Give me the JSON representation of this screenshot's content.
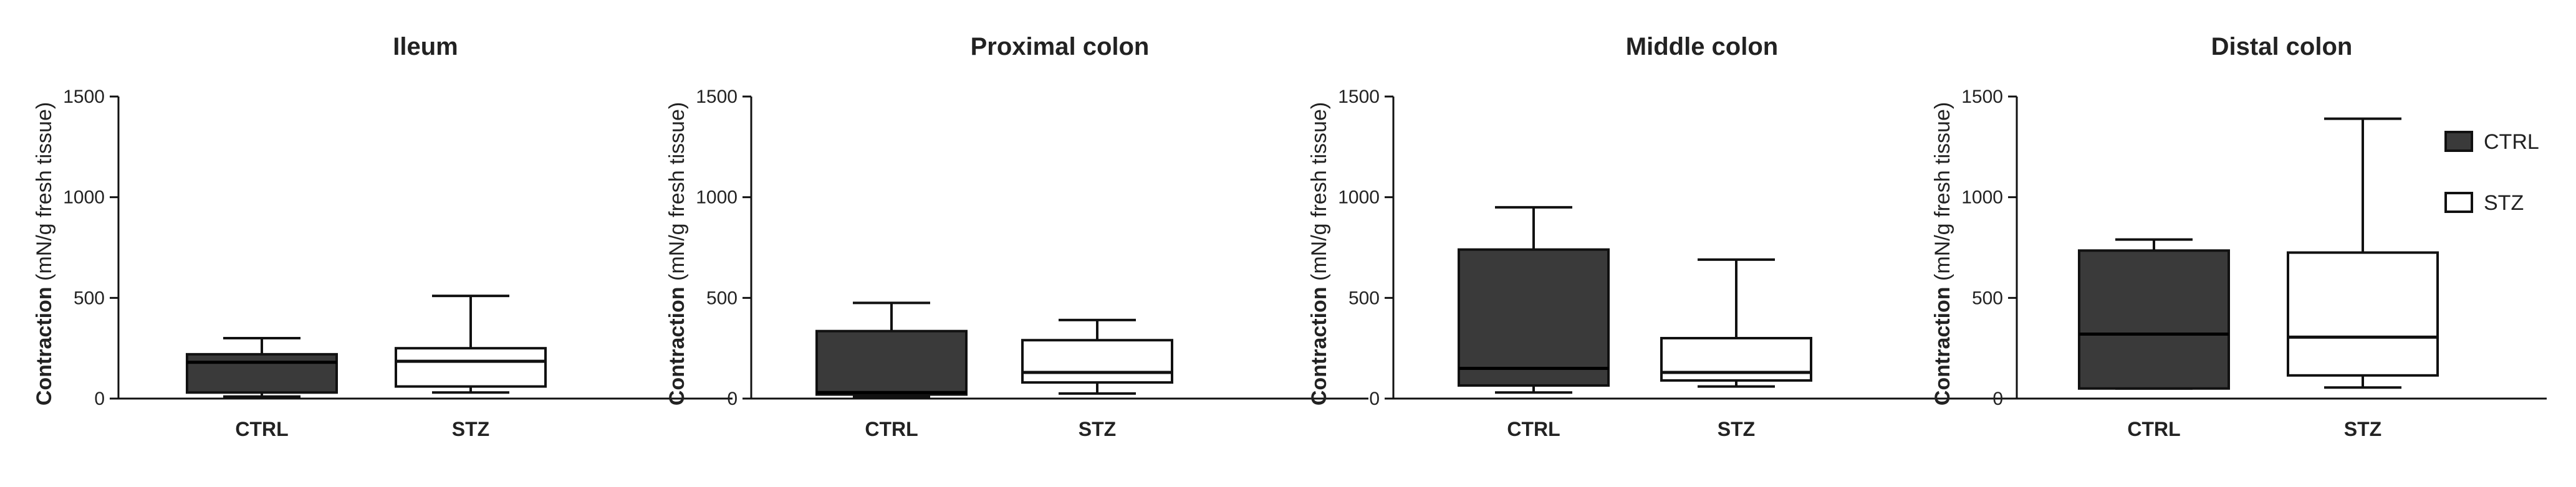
{
  "colors": {
    "ctrl_fill": "#3a3a3a",
    "stz_fill": "#ffffff",
    "stroke": "#111111"
  },
  "legend": {
    "placement": "top-right",
    "items": [
      {
        "label": "CTRL",
        "swatch": "ctrl_fill"
      },
      {
        "label": "STZ",
        "swatch": "stz_fill"
      }
    ]
  },
  "chart_data": [
    {
      "type": "boxplot",
      "title": "Ileum",
      "ylabel_bold": "Contraction",
      "ylabel_rest": "(mN/g fresh tissue)",
      "ylim": [
        0,
        1500
      ],
      "yticks": [
        0,
        500,
        1000,
        1500
      ],
      "categories": [
        "CTRL",
        "STZ"
      ],
      "series": [
        {
          "name": "CTRL",
          "min": 10,
          "q1": 30,
          "median": 180,
          "q3": 220,
          "max": 300
        },
        {
          "name": "STZ",
          "min": 30,
          "q1": 60,
          "median": 185,
          "q3": 250,
          "max": 510
        }
      ]
    },
    {
      "type": "boxplot",
      "title": "Proximal colon",
      "ylabel_bold": "Contraction",
      "ylabel_rest": "(mN/g fresh tissue)",
      "ylim": [
        0,
        1500
      ],
      "yticks": [
        0,
        500,
        1000,
        1500
      ],
      "categories": [
        "CTRL",
        "STZ"
      ],
      "series": [
        {
          "name": "CTRL",
          "min": 10,
          "q1": 20,
          "median": 30,
          "q3": 335,
          "max": 475
        },
        {
          "name": "STZ",
          "min": 25,
          "q1": 80,
          "median": 130,
          "q3": 290,
          "max": 390
        }
      ]
    },
    {
      "type": "boxplot",
      "title": "Middle colon",
      "ylabel_bold": "Contraction",
      "ylabel_rest": "(mN/g fresh tissue)",
      "ylim": [
        0,
        1500
      ],
      "yticks": [
        0,
        500,
        1000,
        1500
      ],
      "categories": [
        "CTRL",
        "STZ"
      ],
      "series": [
        {
          "name": "CTRL",
          "min": 30,
          "q1": 65,
          "median": 150,
          "q3": 740,
          "max": 950
        },
        {
          "name": "STZ",
          "min": 60,
          "q1": 90,
          "median": 130,
          "q3": 300,
          "max": 690
        }
      ]
    },
    {
      "type": "boxplot",
      "title": "Distal colon",
      "ylabel_bold": "Contraction",
      "ylabel_rest": "(mN/g fresh tissue)",
      "ylim": [
        0,
        1500
      ],
      "yticks": [
        0,
        500,
        1000,
        1500
      ],
      "categories": [
        "CTRL",
        "STZ"
      ],
      "series": [
        {
          "name": "CTRL",
          "min": 50,
          "q1": 50,
          "median": 320,
          "q3": 735,
          "max": 790
        },
        {
          "name": "STZ",
          "min": 55,
          "q1": 115,
          "median": 305,
          "q3": 725,
          "max": 1390
        }
      ]
    }
  ]
}
